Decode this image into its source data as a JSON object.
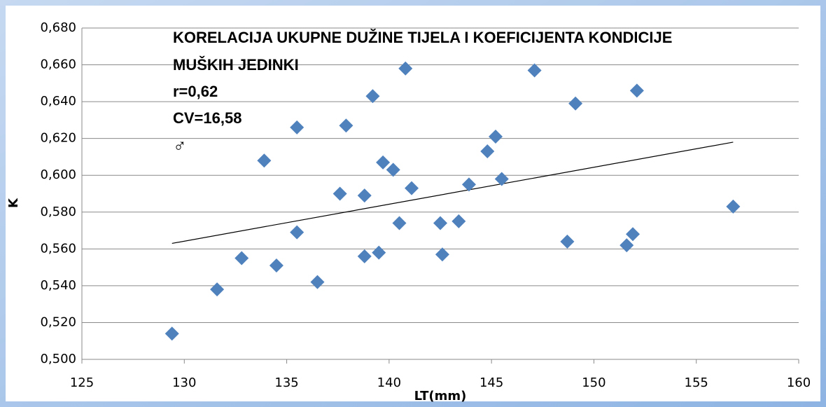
{
  "chart_data": {
    "type": "scatter",
    "annotations": [
      "KORELACIJA UKUPNE DUŽINE TIJELA I  KOEFICIJENTA KONDICIJE",
      "MUŠKIH JEDINKI",
      "r=0,62",
      "CV=16,58",
      "♂"
    ],
    "xlabel": "LT(mm)",
    "ylabel": "K",
    "xlim": [
      125,
      160
    ],
    "xticks": [
      125,
      130,
      135,
      140,
      145,
      150,
      155,
      160
    ],
    "ylim": [
      0.5,
      0.68
    ],
    "yticks": [
      {
        "value": 0.5,
        "label": "0,500"
      },
      {
        "value": 0.52,
        "label": "0,520"
      },
      {
        "value": 0.54,
        "label": "0,540"
      },
      {
        "value": 0.56,
        "label": "0,560"
      },
      {
        "value": 0.58,
        "label": "0,580"
      },
      {
        "value": 0.6,
        "label": "0,600"
      },
      {
        "value": 0.62,
        "label": "0,620"
      },
      {
        "value": 0.64,
        "label": "0,640"
      },
      {
        "value": 0.66,
        "label": "0,660"
      },
      {
        "value": 0.68,
        "label": "0,680"
      }
    ],
    "grid": true,
    "color": "#4f81bd",
    "trend_color": "#000000",
    "x": [
      129.4,
      131.6,
      132.8,
      133.9,
      134.5,
      135.5,
      135.5,
      136.5,
      137.6,
      137.9,
      138.8,
      138.8,
      139.2,
      139.5,
      139.7,
      140.2,
      140.5,
      140.8,
      141.1,
      142.5,
      142.6,
      143.4,
      143.9,
      144.8,
      145.2,
      145.5,
      147.1,
      148.7,
      149.1,
      151.6,
      151.9,
      152.1,
      156.8
    ],
    "values": [
      0.514,
      0.538,
      0.555,
      0.608,
      0.551,
      0.569,
      0.626,
      0.542,
      0.59,
      0.627,
      0.589,
      0.556,
      0.643,
      0.558,
      0.607,
      0.603,
      0.574,
      0.658,
      0.593,
      0.574,
      0.557,
      0.575,
      0.595,
      0.613,
      0.621,
      0.598,
      0.657,
      0.564,
      0.639,
      0.562,
      0.568,
      0.646,
      0.583
    ],
    "trend": {
      "x": [
        129.4,
        156.8
      ],
      "values": [
        0.563,
        0.618
      ]
    }
  }
}
